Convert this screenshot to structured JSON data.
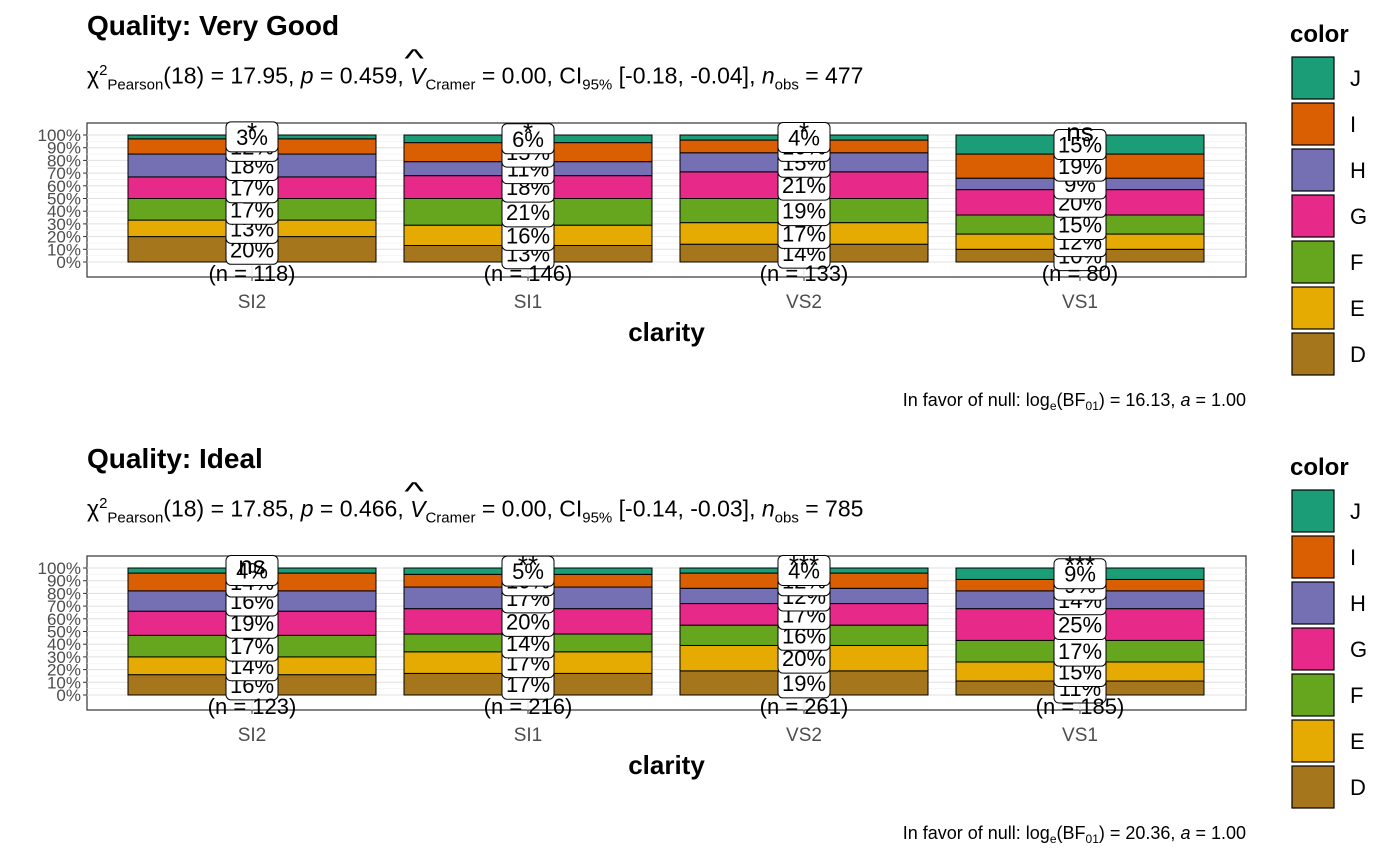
{
  "charts": [
    {
      "title": "Quality: Very Good",
      "stats": {
        "chi_symbol": "χ",
        "chi_sup": "2",
        "chi_sub": "Pearson",
        "df": "(18) = 17.95",
        "p_label": "p",
        "p_value": " = 0.459",
        "v_label": "V",
        "v_sub": "Cramer",
        "v_value": " = 0.00",
        "ci_label": "CI",
        "ci_sub": "95%",
        "ci_value": " [-0.18, -0.04]",
        "n_label": "n",
        "n_sub": "obs",
        "n_value": " = 477"
      },
      "caption": {
        "prefix": "In favor of null: log",
        "e_sub": "e",
        "bf": "(BF",
        "bf_sub": "01",
        "rest": ") = 16.13, ",
        "a_label": "a",
        "a_value": " = 1.00"
      }
    },
    {
      "title": "Quality: Ideal",
      "stats": {
        "chi_symbol": "χ",
        "chi_sup": "2",
        "chi_sub": "Pearson",
        "df": "(18) = 17.85",
        "p_label": "p",
        "p_value": " = 0.466",
        "v_label": "V",
        "v_sub": "Cramer",
        "v_value": " = 0.00",
        "ci_label": "CI",
        "ci_sub": "95%",
        "ci_value": " [-0.14, -0.03]",
        "n_label": "n",
        "n_sub": "obs",
        "n_value": " = 785"
      },
      "caption": {
        "prefix": "In favor of null: log",
        "e_sub": "e",
        "bf": "(BF",
        "bf_sub": "01",
        "rest": ") = 20.36, ",
        "a_label": "a",
        "a_value": " = 1.00"
      }
    }
  ],
  "chart_data": [
    {
      "type": "bar",
      "stacked": "percent",
      "title": "Quality: Very Good",
      "xlabel": "clarity",
      "ylabel": "",
      "ylim": [
        0,
        1
      ],
      "yticks": [
        "0%",
        "10%",
        "20%",
        "30%",
        "40%",
        "50%",
        "60%",
        "70%",
        "80%",
        "90%",
        "100%"
      ],
      "categories": [
        "SI2",
        "SI1",
        "VS2",
        "VS1"
      ],
      "counts": [
        "(n = 118)",
        "(n = 146)",
        "(n = 133)",
        "(n = 80)"
      ],
      "significance": [
        "*",
        "*",
        "*",
        "ns"
      ],
      "legend": {
        "title": "color",
        "position": "right"
      },
      "series": [
        {
          "name": "D",
          "color": "#A6761D",
          "values": [
            0.2,
            0.13,
            0.14,
            0.1
          ],
          "labels": [
            "20%",
            "13%",
            "14%",
            "10%"
          ]
        },
        {
          "name": "E",
          "color": "#E6AB02",
          "values": [
            0.13,
            0.16,
            0.17,
            0.12
          ],
          "labels": [
            "13%",
            "16%",
            "17%",
            "12%"
          ]
        },
        {
          "name": "F",
          "color": "#66A61E",
          "values": [
            0.17,
            0.21,
            0.19,
            0.15
          ],
          "labels": [
            "17%",
            "21%",
            "19%",
            "15%"
          ]
        },
        {
          "name": "G",
          "color": "#E7298A",
          "values": [
            0.17,
            0.18,
            0.21,
            0.2
          ],
          "labels": [
            "17%",
            "18%",
            "21%",
            "20%"
          ]
        },
        {
          "name": "H",
          "color": "#7570B3",
          "values": [
            0.18,
            0.11,
            0.15,
            0.09
          ],
          "labels": [
            "18%",
            "11%",
            "15%",
            "9%"
          ]
        },
        {
          "name": "I",
          "color": "#D95F02",
          "values": [
            0.12,
            0.15,
            0.1,
            0.19
          ],
          "labels": [
            "12%",
            "15%",
            "10%",
            "19%"
          ]
        },
        {
          "name": "J",
          "color": "#1B9E77",
          "values": [
            0.03,
            0.06,
            0.04,
            0.15
          ],
          "labels": [
            "3%",
            "6%",
            "4%",
            "15%"
          ]
        }
      ]
    },
    {
      "type": "bar",
      "stacked": "percent",
      "title": "Quality: Ideal",
      "xlabel": "clarity",
      "ylabel": "",
      "ylim": [
        0,
        1
      ],
      "yticks": [
        "0%",
        "10%",
        "20%",
        "30%",
        "40%",
        "50%",
        "60%",
        "70%",
        "80%",
        "90%",
        "100%"
      ],
      "categories": [
        "SI2",
        "SI1",
        "VS2",
        "VS1"
      ],
      "counts": [
        "(n = 123)",
        "(n = 216)",
        "(n = 261)",
        "(n = 185)"
      ],
      "significance": [
        "ns",
        "**",
        "***",
        "***"
      ],
      "legend": {
        "title": "color",
        "position": "right"
      },
      "series": [
        {
          "name": "D",
          "color": "#A6761D",
          "values": [
            0.16,
            0.17,
            0.19,
            0.11
          ],
          "labels": [
            "16%",
            "17%",
            "19%",
            "11%"
          ]
        },
        {
          "name": "E",
          "color": "#E6AB02",
          "values": [
            0.14,
            0.17,
            0.2,
            0.15
          ],
          "labels": [
            "14%",
            "17%",
            "20%",
            "15%"
          ]
        },
        {
          "name": "F",
          "color": "#66A61E",
          "values": [
            0.17,
            0.14,
            0.16,
            0.17
          ],
          "labels": [
            "17%",
            "14%",
            "16%",
            "17%"
          ]
        },
        {
          "name": "G",
          "color": "#E7298A",
          "values": [
            0.19,
            0.2,
            0.17,
            0.25
          ],
          "labels": [
            "19%",
            "20%",
            "17%",
            "25%"
          ]
        },
        {
          "name": "H",
          "color": "#7570B3",
          "values": [
            0.16,
            0.17,
            0.12,
            0.14
          ],
          "labels": [
            "16%",
            "17%",
            "12%",
            "14%"
          ]
        },
        {
          "name": "I",
          "color": "#D95F02",
          "values": [
            0.14,
            0.1,
            0.12,
            0.09
          ],
          "labels": [
            "14%",
            "10%",
            "12%",
            "9%"
          ]
        },
        {
          "name": "J",
          "color": "#1B9E77",
          "values": [
            0.04,
            0.05,
            0.04,
            0.09
          ],
          "labels": [
            "4%",
            "5%",
            "4%",
            "9%"
          ]
        }
      ]
    }
  ]
}
